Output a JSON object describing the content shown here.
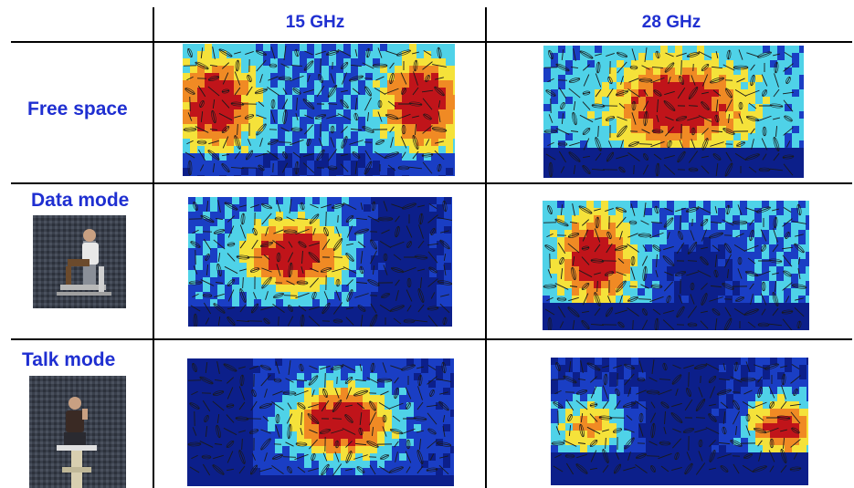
{
  "columns": {
    "left_header": "15 GHz",
    "right_header": "28 GHz"
  },
  "rows": [
    {
      "label": "Free space"
    },
    {
      "label": "Data mode"
    },
    {
      "label": "Talk mode"
    }
  ],
  "colors": {
    "label_blue": "#1f2fd1",
    "heat_red": "#c0141a",
    "heat_orange": "#f08a24",
    "heat_yellow": "#f5e23a",
    "heat_cyan": "#4fd2e8",
    "heat_blue": "#1a3ec4",
    "heat_navy": "#0c1f8a"
  },
  "icons": [
    "person-in-anechoic-chamber-data-mode",
    "person-in-anechoic-chamber-talk-mode"
  ]
}
